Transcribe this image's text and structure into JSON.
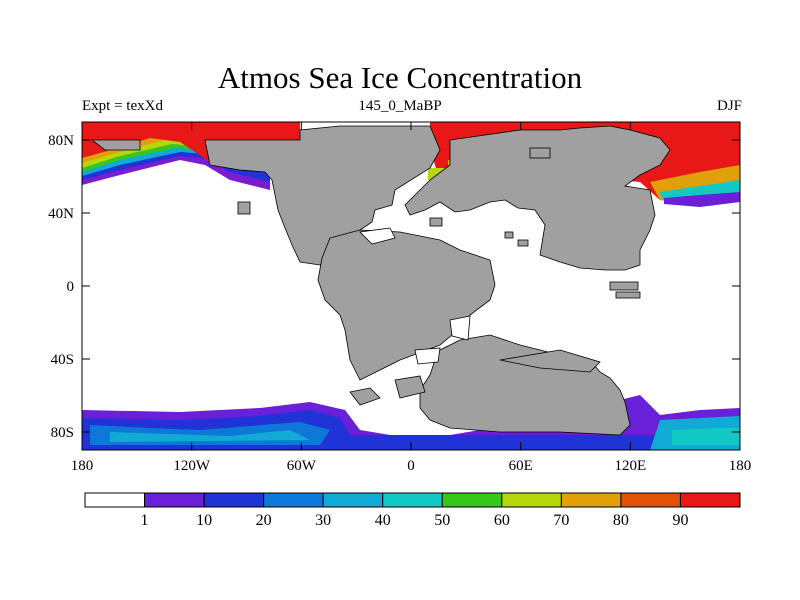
{
  "title": "Atmos Sea Ice Concentration",
  "subtitle_left": "Expt = texXd",
  "subtitle_center": "145_0_MaBP",
  "subtitle_right": "DJF",
  "x_axis": {
    "ticks": [
      "180",
      "120W",
      "60W",
      "0",
      "60E",
      "120E",
      "180"
    ]
  },
  "y_axis": {
    "ticks": [
      "80N",
      "40N",
      "0",
      "40S",
      "80S"
    ]
  },
  "colorbar": {
    "labels": [
      "1",
      "10",
      "20",
      "30",
      "40",
      "50",
      "60",
      "70",
      "80",
      "90"
    ],
    "colors": [
      "#ffffff",
      "#6a1fd8",
      "#1f33d6",
      "#0e78d8",
      "#11aad4",
      "#12c8c4",
      "#36c61c",
      "#b8d60c",
      "#e0a00a",
      "#e05208",
      "#e81818"
    ]
  },
  "colors": {
    "land": "#a0a0a0",
    "ice_high": "#e81818"
  }
}
